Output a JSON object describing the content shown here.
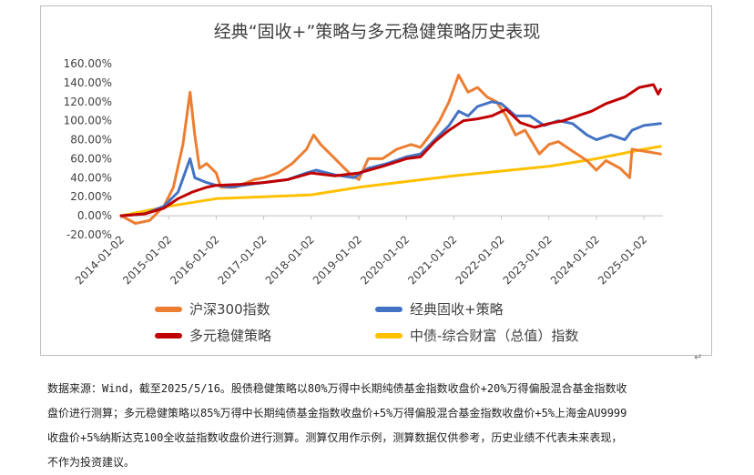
{
  "chart_data": {
    "type": "line",
    "title": "经典“固收+”策略与多元稳健策略历史表现",
    "ylim": [
      -0.2,
      1.6
    ],
    "y_ticks": [
      "160.00%",
      "140.00%",
      "120.00%",
      "100.00%",
      "80.00%",
      "60.00%",
      "40.00%",
      "20.00%",
      "0.00%",
      "-20.00%"
    ],
    "x_ticks": [
      "2014-01-02",
      "2015-01-02",
      "2016-01-02",
      "2017-01-02",
      "2018-01-02",
      "2019-01-02",
      "2020-01-02",
      "2021-01-02",
      "2022-01-02",
      "2023-01-02",
      "2024-01-02",
      "2025-01-02"
    ],
    "legend_position": "bottom",
    "series": [
      {
        "name": "沪深300指数",
        "color": "#ED7D31",
        "points": [
          [
            2014.0,
            0.0
          ],
          [
            2014.3,
            -0.08
          ],
          [
            2014.6,
            -0.05
          ],
          [
            2014.9,
            0.1
          ],
          [
            2015.1,
            0.3
          ],
          [
            2015.3,
            0.75
          ],
          [
            2015.45,
            1.3
          ],
          [
            2015.55,
            0.85
          ],
          [
            2015.65,
            0.5
          ],
          [
            2015.8,
            0.55
          ],
          [
            2016.0,
            0.45
          ],
          [
            2016.1,
            0.3
          ],
          [
            2016.4,
            0.3
          ],
          [
            2016.8,
            0.38
          ],
          [
            2017.0,
            0.4
          ],
          [
            2017.3,
            0.45
          ],
          [
            2017.6,
            0.55
          ],
          [
            2017.9,
            0.7
          ],
          [
            2018.05,
            0.85
          ],
          [
            2018.2,
            0.75
          ],
          [
            2018.5,
            0.6
          ],
          [
            2018.8,
            0.45
          ],
          [
            2019.0,
            0.38
          ],
          [
            2019.2,
            0.6
          ],
          [
            2019.5,
            0.6
          ],
          [
            2019.8,
            0.7
          ],
          [
            2020.1,
            0.75
          ],
          [
            2020.3,
            0.72
          ],
          [
            2020.5,
            0.85
          ],
          [
            2020.7,
            1.0
          ],
          [
            2020.9,
            1.2
          ],
          [
            2021.1,
            1.48
          ],
          [
            2021.3,
            1.3
          ],
          [
            2021.5,
            1.35
          ],
          [
            2021.7,
            1.25
          ],
          [
            2021.9,
            1.2
          ],
          [
            2022.1,
            1.05
          ],
          [
            2022.3,
            0.85
          ],
          [
            2022.5,
            0.9
          ],
          [
            2022.8,
            0.65
          ],
          [
            2023.0,
            0.75
          ],
          [
            2023.2,
            0.78
          ],
          [
            2023.5,
            0.68
          ],
          [
            2023.8,
            0.58
          ],
          [
            2024.0,
            0.48
          ],
          [
            2024.2,
            0.58
          ],
          [
            2024.5,
            0.5
          ],
          [
            2024.7,
            0.4
          ],
          [
            2024.75,
            0.7
          ],
          [
            2025.0,
            0.68
          ],
          [
            2025.35,
            0.65
          ]
        ]
      },
      {
        "name": "经典固收+策略",
        "color": "#4472C4",
        "points": [
          [
            2014.0,
            0.0
          ],
          [
            2014.5,
            0.02
          ],
          [
            2014.9,
            0.1
          ],
          [
            2015.2,
            0.25
          ],
          [
            2015.45,
            0.6
          ],
          [
            2015.55,
            0.4
          ],
          [
            2015.8,
            0.35
          ],
          [
            2016.0,
            0.32
          ],
          [
            2016.3,
            0.3
          ],
          [
            2016.7,
            0.33
          ],
          [
            2017.0,
            0.35
          ],
          [
            2017.5,
            0.38
          ],
          [
            2017.9,
            0.45
          ],
          [
            2018.1,
            0.48
          ],
          [
            2018.5,
            0.43
          ],
          [
            2018.9,
            0.4
          ],
          [
            2019.2,
            0.5
          ],
          [
            2019.6,
            0.55
          ],
          [
            2020.0,
            0.62
          ],
          [
            2020.3,
            0.65
          ],
          [
            2020.6,
            0.8
          ],
          [
            2020.9,
            0.95
          ],
          [
            2021.1,
            1.1
          ],
          [
            2021.3,
            1.05
          ],
          [
            2021.5,
            1.15
          ],
          [
            2021.8,
            1.2
          ],
          [
            2022.0,
            1.18
          ],
          [
            2022.3,
            1.05
          ],
          [
            2022.6,
            1.05
          ],
          [
            2022.9,
            0.95
          ],
          [
            2023.2,
            1.0
          ],
          [
            2023.5,
            0.97
          ],
          [
            2023.8,
            0.85
          ],
          [
            2024.0,
            0.8
          ],
          [
            2024.3,
            0.85
          ],
          [
            2024.6,
            0.8
          ],
          [
            2024.75,
            0.9
          ],
          [
            2025.0,
            0.95
          ],
          [
            2025.35,
            0.97
          ]
        ]
      },
      {
        "name": "多元稳健策略",
        "color": "#C00000",
        "points": [
          [
            2014.0,
            0.0
          ],
          [
            2014.5,
            0.02
          ],
          [
            2014.9,
            0.08
          ],
          [
            2015.2,
            0.18
          ],
          [
            2015.5,
            0.25
          ],
          [
            2015.8,
            0.3
          ],
          [
            2016.0,
            0.32
          ],
          [
            2016.5,
            0.33
          ],
          [
            2017.0,
            0.35
          ],
          [
            2017.5,
            0.38
          ],
          [
            2018.0,
            0.45
          ],
          [
            2018.5,
            0.42
          ],
          [
            2019.0,
            0.45
          ],
          [
            2019.5,
            0.52
          ],
          [
            2020.0,
            0.6
          ],
          [
            2020.3,
            0.62
          ],
          [
            2020.6,
            0.78
          ],
          [
            2020.9,
            0.9
          ],
          [
            2021.2,
            1.0
          ],
          [
            2021.5,
            1.02
          ],
          [
            2021.8,
            1.05
          ],
          [
            2022.1,
            1.12
          ],
          [
            2022.4,
            0.98
          ],
          [
            2022.7,
            0.93
          ],
          [
            2023.0,
            0.97
          ],
          [
            2023.3,
            1.0
          ],
          [
            2023.6,
            1.05
          ],
          [
            2023.9,
            1.1
          ],
          [
            2024.2,
            1.18
          ],
          [
            2024.6,
            1.25
          ],
          [
            2024.9,
            1.35
          ],
          [
            2025.2,
            1.38
          ],
          [
            2025.3,
            1.28
          ],
          [
            2025.35,
            1.33
          ]
        ]
      },
      {
        "name": "中债-综合财富（总值）指数",
        "color": "#FFC000",
        "points": [
          [
            2014.0,
            0.0
          ],
          [
            2015.0,
            0.1
          ],
          [
            2016.0,
            0.18
          ],
          [
            2017.0,
            0.2
          ],
          [
            2018.0,
            0.22
          ],
          [
            2019.0,
            0.3
          ],
          [
            2020.0,
            0.36
          ],
          [
            2021.0,
            0.42
          ],
          [
            2022.0,
            0.47
          ],
          [
            2023.0,
            0.52
          ],
          [
            2024.0,
            0.6
          ],
          [
            2025.0,
            0.7
          ],
          [
            2025.35,
            0.73
          ]
        ]
      }
    ]
  },
  "notes": {
    "line1": "数据来源：Wind，截至2025/5/16。股债稳健策略以80%万得中长期纯债基金指数收盘价+20%万得偏股混合基金指数收",
    "line2": "盘价进行测算；多元稳健策略以85%万得中长期纯债基金指数收盘价+5%万得偏股混合基金指数收盘价+5%上海金AU9999",
    "line3": "收盘价+5%纳斯达克100全收益指数收盘价进行测算。测算仅用作示例，测算数据仅供参考，历史业绩不代表未来表现，",
    "line4": "不作为投资建议。"
  }
}
